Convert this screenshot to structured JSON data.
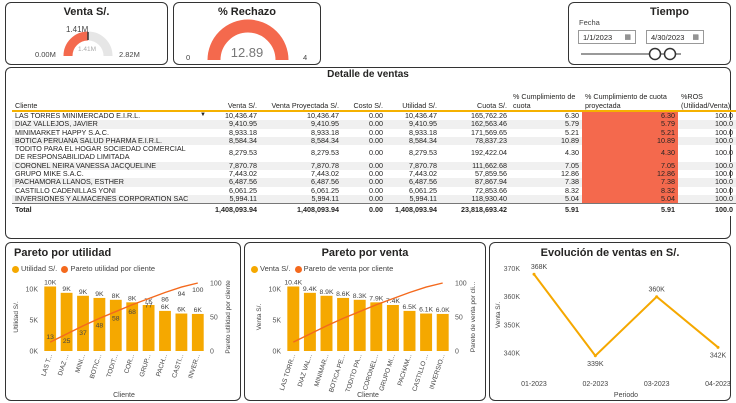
{
  "cards": {
    "venta": {
      "title": "Venta S/.",
      "value": "1.41M",
      "center": "1.41M",
      "min": "0.00M",
      "max": "2.82M",
      "fraction": 0.5
    },
    "rechazo": {
      "title": "% Rechazo",
      "value": "12.89",
      "min": "0",
      "max": "4"
    },
    "tiempo": {
      "title": "Tiempo",
      "label": "Fecha",
      "start": "1/1/2023",
      "end": "4/30/2023"
    }
  },
  "table": {
    "title": "Detalle de ventas",
    "headers": [
      "Cliente",
      "Venta S/.",
      "Venta Proyectada S/.",
      "Costo S/.",
      "Utilidad S/.",
      "Cuota S/.",
      "% Cumplimiento de cuota",
      "% Cumplimiento de cuota proyectada",
      "%ROS (Utilidad/Venta)"
    ],
    "rows": [
      [
        "LAS TORRES MINIMERCADO E.I.R.L.",
        "10,436.47",
        "10,436.47",
        "0.00",
        "10,436.47",
        "165,762.26",
        "6.30",
        "6.30",
        "100.0"
      ],
      [
        "DIAZ VALLEJOS, JAVIER",
        "9,410.95",
        "9,410.95",
        "0.00",
        "9,410.95",
        "162,563.46",
        "5.79",
        "5.79",
        "100.0"
      ],
      [
        "MINIMARKET HAPPY S.A.C.",
        "8,933.18",
        "8,933.18",
        "0.00",
        "8,933.18",
        "171,569.65",
        "5.21",
        "5.21",
        "100.0"
      ],
      [
        "BOTICA PERUANA SALUD PHARMA E.I.R.L.",
        "8,584.34",
        "8,584.34",
        "0.00",
        "8,584.34",
        "78,837.23",
        "10.89",
        "10.89",
        "100.0"
      ],
      [
        "TODITO PARA EL HOGAR SOCIEDAD COMERCIAL DE RESPONSABILIDAD LIMITADA",
        "8,279.53",
        "8,279.53",
        "0.00",
        "8,279.53",
        "192,422.04",
        "4.30",
        "4.30",
        "100.0"
      ],
      [
        "CORONEL NEIRA VANESSA JACQUELINE",
        "7,870.78",
        "7,870.78",
        "0.00",
        "7,870.78",
        "111,662.68",
        "7.05",
        "7.05",
        "100.0"
      ],
      [
        "GRUPO MIKE S.A.C.",
        "7,443.02",
        "7,443.02",
        "0.00",
        "7,443.02",
        "57,859.56",
        "12.86",
        "12.86",
        "100.0"
      ],
      [
        "PACHAMORA LLANOS, ESTHER",
        "6,487.56",
        "6,487.56",
        "0.00",
        "6,487.56",
        "87,867.94",
        "7.38",
        "7.38",
        "100.0"
      ],
      [
        "CASTILLO CADENILLAS YONI",
        "6,061.25",
        "6,061.25",
        "0.00",
        "6,061.25",
        "72,853.66",
        "8.32",
        "8.32",
        "100.0"
      ],
      [
        "INVERSIONES Y ALMACENES CORPORATION SAC",
        "5,994.11",
        "5,994.11",
        "0.00",
        "5,994.11",
        "118,930.40",
        "5.04",
        "5.04",
        "100.0"
      ]
    ],
    "total": [
      "Total",
      "1,408,093.94",
      "1,408,093.94",
      "0.00",
      "1,408,093.94",
      "23,818,693.42",
      "5.91",
      "5.91",
      "100.0"
    ]
  },
  "pareto_utilidad": {
    "title": "Pareto por utilidad",
    "legend": [
      "Utilidad S/.",
      "Pareto utilidad por cliente"
    ],
    "ylabel": "Utilidad S/.",
    "y2label": "Pareto utilidad por cliente",
    "xlabel": "Cliente",
    "yticks": [
      "10K",
      "5K",
      "0K"
    ],
    "y2ticks": [
      "100",
      "50",
      "0"
    ]
  },
  "pareto_venta": {
    "title": "Pareto por venta",
    "legend": [
      "Venta S/.",
      "Pareto de venta por cliente"
    ],
    "ylabel": "Venta S/.",
    "y2label": "Pareto de venta por cli...",
    "xlabel": "Cliente",
    "yticks": [
      "10K",
      "5K",
      "0K"
    ],
    "y2ticks": [
      "100",
      "50",
      "0"
    ]
  },
  "evolucion": {
    "title": "Evolución de ventas en S/.",
    "ylabel": "Venta S/.",
    "xlabel": "Periodo",
    "yticks": [
      "370K",
      "360K",
      "350K",
      "340K"
    ]
  },
  "chart_data": [
    {
      "type": "bar",
      "title": "Pareto por utilidad",
      "categories": [
        "LAS T...",
        "DIAZ ...",
        "MINI...",
        "BOTIC...",
        "TODIT...",
        "COR...",
        "GRUP...",
        "PACH...",
        "CASTI...",
        "INVER..."
      ],
      "series": [
        {
          "name": "Utilidad S/.",
          "values": [
            10436,
            9411,
            8933,
            8584,
            8280,
            7871,
            7443,
            6488,
            6061,
            5994
          ],
          "labels": [
            "10K",
            "9K",
            "9K",
            "9K",
            "8K",
            "8K",
            "7K",
            "6K",
            "6K",
            "6K"
          ]
        },
        {
          "name": "Pareto utilidad por cliente",
          "values": [
            13,
            25,
            37,
            48,
            58,
            68,
            77,
            86,
            94,
            100
          ],
          "labels": [
            "13",
            "25",
            "37",
            "48",
            "58",
            "68",
            "77",
            "86",
            "94",
            "100"
          ]
        }
      ],
      "ylim": [
        0,
        11000
      ],
      "y2lim": [
        0,
        100
      ]
    },
    {
      "type": "bar",
      "title": "Pareto por venta",
      "categories": [
        "LAS TORR...",
        "DIAZ VAL...",
        "MINIMAR...",
        "BOTICA PE...",
        "TODITO PA...",
        "CORONEL...",
        "GRUPO MI...",
        "PACHAM...",
        "CASTILLO ...",
        "INVERSIO..."
      ],
      "series": [
        {
          "name": "Venta S/.",
          "values": [
            10436,
            9411,
            8933,
            8584,
            8280,
            7871,
            7443,
            6488,
            6061,
            5994
          ],
          "labels": [
            "10.4K",
            "9.4K",
            "8.9K",
            "8.6K",
            "8.3K",
            "7.9K",
            "7.4K",
            "6.5K",
            "6.1K",
            "6.0K"
          ]
        },
        {
          "name": "Pareto de venta por cliente",
          "values": [
            13,
            25,
            37,
            48,
            58,
            68,
            77,
            86,
            94,
            100
          ]
        }
      ],
      "ylim": [
        0,
        11000
      ],
      "y2lim": [
        0,
        100
      ]
    },
    {
      "type": "line",
      "title": "Evolución de ventas en S/.",
      "x": [
        "01-2023",
        "02-2023",
        "03-2023",
        "04-2023"
      ],
      "series": [
        {
          "name": "Venta S/.",
          "values": [
            368000,
            339000,
            360000,
            342000
          ],
          "labels": [
            "368K",
            "339K",
            "360K",
            "342K"
          ]
        }
      ],
      "ylim": [
        335000,
        372000
      ]
    }
  ],
  "colors": {
    "bar": "#f5a800",
    "line": "#f4691d",
    "gauge": "#f4694d",
    "highlight": "#f4694d"
  }
}
